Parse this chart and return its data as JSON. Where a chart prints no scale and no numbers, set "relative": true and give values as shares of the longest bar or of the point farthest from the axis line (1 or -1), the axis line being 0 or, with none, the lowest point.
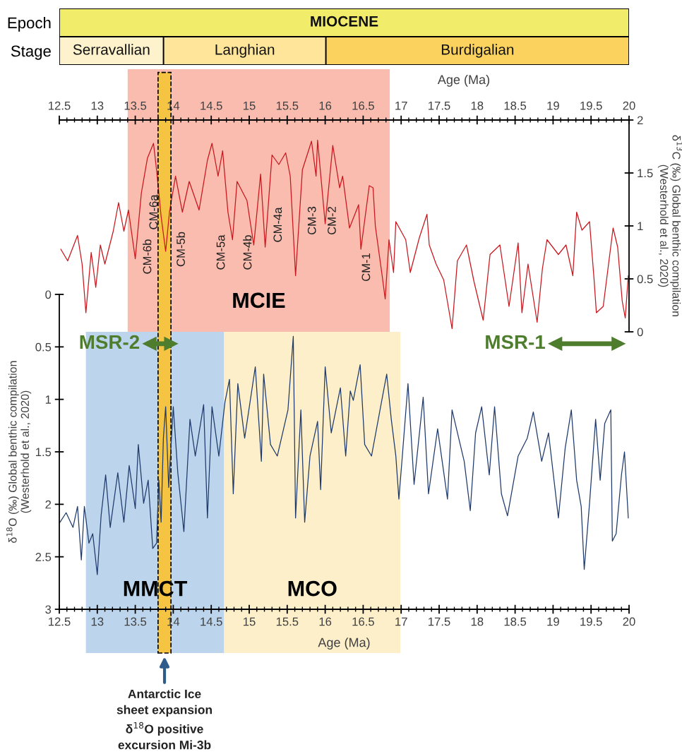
{
  "chart_data": [
    {
      "type": "bar",
      "orientation": "horizontal",
      "stacked": true,
      "relative": true,
      "categories": [
        "Epoch",
        "Stage"
      ],
      "series": [
        {
          "name": "MIOCENE",
          "color": "#f2ec6b",
          "values": [
            1,
            null
          ]
        },
        {
          "name": "Serravallian",
          "color": "#fef2cc",
          "values": [
            null,
            0.183
          ]
        },
        {
          "name": "Langhian",
          "color": "#fee59a",
          "values": [
            null,
            0.285
          ]
        },
        {
          "name": "Burdigalian",
          "color": "#fcd25e",
          "values": [
            null,
            0.532
          ]
        }
      ]
    },
    {
      "type": "line",
      "xlim": [
        12.5,
        20
      ],
      "xticks": [
        12.5,
        13,
        13.5,
        14,
        14.5,
        15,
        15.5,
        16,
        16.5,
        17,
        17.5,
        18,
        18.5,
        19,
        19.5,
        20
      ],
      "xlabel": "Age (Ma)",
      "ylim": [
        0,
        2
      ],
      "yticks": [
        0,
        0.5,
        1,
        1.5,
        2
      ],
      "ylabel": "δ$^{13}$C (‰) Global benthic compilation\n(Westerhold et al., 2020)",
      "bands": [
        {
          "axis": "x",
          "from": 13.4,
          "to": 16.85,
          "label": "MCIE",
          "color": "#f9bcaf"
        }
      ],
      "annotations": [
        "CM-6b",
        "CM-6a",
        "CM-5b",
        "CM-5a",
        "CM-4b",
        "CM-4a",
        "CM-3",
        "CM-2",
        "CM-1"
      ],
      "series": [
        {
          "color": "#c8161d",
          "x": [
            12.52,
            12.61,
            12.74,
            12.8,
            12.85,
            12.92,
            12.98,
            13.04,
            13.1,
            13.21,
            13.28,
            13.35,
            13.41,
            13.5,
            13.58,
            13.66,
            13.74,
            13.78,
            13.84,
            13.9,
            13.95,
            14.03,
            14.12,
            14.21,
            14.34,
            14.45,
            14.51,
            14.59,
            14.65,
            14.72,
            14.78,
            14.84,
            14.97,
            15.06,
            15.15,
            15.21,
            15.3,
            15.39,
            15.48,
            15.54,
            15.61,
            15.7,
            15.82,
            15.88,
            15.9,
            16.0,
            16.1,
            16.19,
            16.23,
            16.32,
            16.44,
            16.47,
            16.58,
            16.63,
            16.66,
            16.75,
            16.79,
            16.84,
            16.9,
            16.93,
            17.06,
            17.12,
            17.24,
            17.34,
            17.37,
            17.46,
            17.56,
            17.67,
            17.74,
            17.86,
            17.96,
            18.08,
            18.17,
            18.3,
            18.42,
            18.54,
            18.59,
            18.67,
            18.79,
            18.86,
            18.92,
            19.07,
            19.17,
            19.26,
            19.31,
            19.38,
            19.48,
            19.54,
            19.57,
            19.66,
            19.79,
            19.85,
            19.91,
            19.95,
            19.99
          ],
          "values": [
            0.78,
            0.67,
            0.91,
            0.64,
            0.18,
            0.75,
            0.42,
            0.82,
            0.64,
            0.95,
            1.22,
            0.95,
            1.15,
            0.69,
            1.31,
            1.64,
            1.78,
            1.53,
            1.09,
            0.76,
            1.13,
            1.47,
            1.13,
            1.42,
            1.15,
            1.62,
            1.78,
            1.47,
            1.71,
            1.13,
            0.87,
            1.42,
            1.24,
            0.82,
            1.49,
            0.8,
            1.67,
            1.58,
            1.69,
            1.47,
            0.53,
            1.53,
            1.8,
            1.47,
            1.81,
            1.02,
            1.76,
            1.36,
            1.47,
            0.98,
            1.2,
            0.78,
            1.38,
            1.36,
            1.0,
            0.53,
            0.31,
            0.87,
            0.56,
            1.04,
            0.87,
            0.56,
            0.89,
            1.11,
            0.82,
            0.64,
            0.49,
            0.03,
            0.67,
            0.82,
            0.47,
            0.11,
            0.73,
            0.82,
            0.24,
            0.84,
            0.18,
            0.64,
            0.09,
            0.6,
            0.87,
            0.73,
            0.82,
            0.53,
            1.13,
            0.96,
            1.04,
            0.49,
            0.18,
            0.24,
            0.98,
            0.8,
            0.29,
            0.13,
            0.53
          ]
        }
      ]
    },
    {
      "type": "line",
      "xlim": [
        12.5,
        20
      ],
      "xticks": [
        12.5,
        13,
        13.5,
        14,
        14.5,
        15,
        15.5,
        16,
        16.5,
        17,
        17.5,
        18,
        18.5,
        19,
        19.5,
        20
      ],
      "xlabel": "Age (Ma)",
      "ylim": [
        3,
        0
      ],
      "yticks": [
        0,
        0.5,
        1,
        1.5,
        2,
        2.5,
        3
      ],
      "ylabel": "δ$^{18}$O (‰) Global benthic compilation\n(Westerhold et al., 2020)",
      "bands": [
        {
          "axis": "x",
          "from": 12.85,
          "to": 14.67,
          "label": "MMCT",
          "color": "#bcd5ec"
        },
        {
          "axis": "x",
          "from": 14.67,
          "to": 16.99,
          "label": "MCO",
          "color": "#fdefc9"
        },
        {
          "axis": "x",
          "from": 13.8,
          "to": 13.97,
          "color": "#f6c443"
        }
      ],
      "annotations": [
        "Antarctic Ice\nsheet expansion\nδ$^{18}$O positive\nexcursion Mi-3b"
      ],
      "series": [
        {
          "color": "#1f3a6b",
          "x": [
            12.51,
            12.59,
            12.68,
            12.74,
            12.79,
            12.83,
            12.89,
            12.94,
            13.0,
            13.05,
            13.11,
            13.17,
            13.27,
            13.35,
            13.42,
            13.5,
            13.54,
            13.61,
            13.67,
            13.73,
            13.78,
            13.81,
            13.84,
            13.87,
            13.9,
            13.94,
            14.0,
            14.06,
            14.14,
            14.22,
            14.29,
            14.4,
            14.45,
            14.51,
            14.6,
            14.68,
            14.74,
            14.79,
            14.85,
            14.94,
            15.08,
            15.16,
            15.19,
            15.28,
            15.37,
            15.51,
            15.58,
            15.61,
            15.68,
            15.73,
            15.8,
            15.9,
            15.94,
            16.0,
            16.08,
            16.2,
            16.27,
            16.33,
            16.37,
            16.46,
            16.52,
            16.61,
            16.74,
            16.81,
            16.87,
            16.93,
            16.97,
            17.01,
            17.09,
            17.17,
            17.29,
            17.36,
            17.48,
            17.61,
            17.67,
            17.83,
            17.91,
            17.98,
            18.06,
            18.16,
            18.23,
            18.32,
            18.4,
            18.54,
            18.66,
            18.74,
            18.85,
            18.94,
            19.07,
            19.16,
            19.24,
            19.31,
            19.37,
            19.41,
            19.48,
            19.56,
            19.62,
            19.68,
            19.76,
            19.78,
            19.83,
            19.9,
            19.94,
            19.99
          ],
          "values": [
            2.17,
            2.08,
            2.22,
            2.02,
            2.53,
            2.02,
            2.37,
            2.28,
            2.67,
            2.11,
            1.72,
            2.22,
            1.7,
            2.17,
            1.63,
            2.04,
            1.43,
            1.99,
            1.77,
            2.42,
            2.37,
            1.77,
            2.17,
            1.37,
            1.07,
            1.84,
            1.07,
            1.7,
            2.26,
            1.19,
            1.54,
            1.05,
            2.13,
            1.07,
            1.54,
            1.03,
            0.81,
            1.9,
            0.85,
            1.37,
            0.69,
            1.59,
            0.76,
            1.43,
            1.54,
            1.1,
            0.4,
            2.13,
            1.1,
            2.17,
            1.54,
            1.21,
            1.86,
            0.69,
            1.32,
            0.89,
            1.54,
            0.92,
            1.01,
            0.67,
            1.43,
            1.54,
            1.03,
            0.76,
            1.19,
            1.54,
            1.95,
            1.59,
            0.85,
            1.81,
            0.98,
            1.9,
            1.28,
            1.95,
            1.1,
            1.59,
            2.06,
            1.32,
            1.07,
            1.72,
            1.07,
            1.9,
            2.11,
            1.54,
            1.37,
            1.12,
            1.59,
            1.32,
            2.13,
            1.46,
            1.1,
            1.77,
            2.02,
            2.62,
            1.99,
            1.19,
            1.77,
            1.23,
            1.1,
            2.35,
            2.28,
            1.72,
            1.5,
            2.13
          ]
        },
        {
          "name": "MSR-2",
          "color": "#4e7d2e",
          "marker": "triangle",
          "x": [
            13.69,
            13.97
          ],
          "values": [
            0.47,
            0.47
          ]
        },
        {
          "name": "MSR-1",
          "color": "#4e7d2e",
          "marker": "triangle",
          "x": [
            19.03,
            19.86
          ],
          "values": [
            0.47,
            0.47
          ]
        }
      ]
    }
  ]
}
